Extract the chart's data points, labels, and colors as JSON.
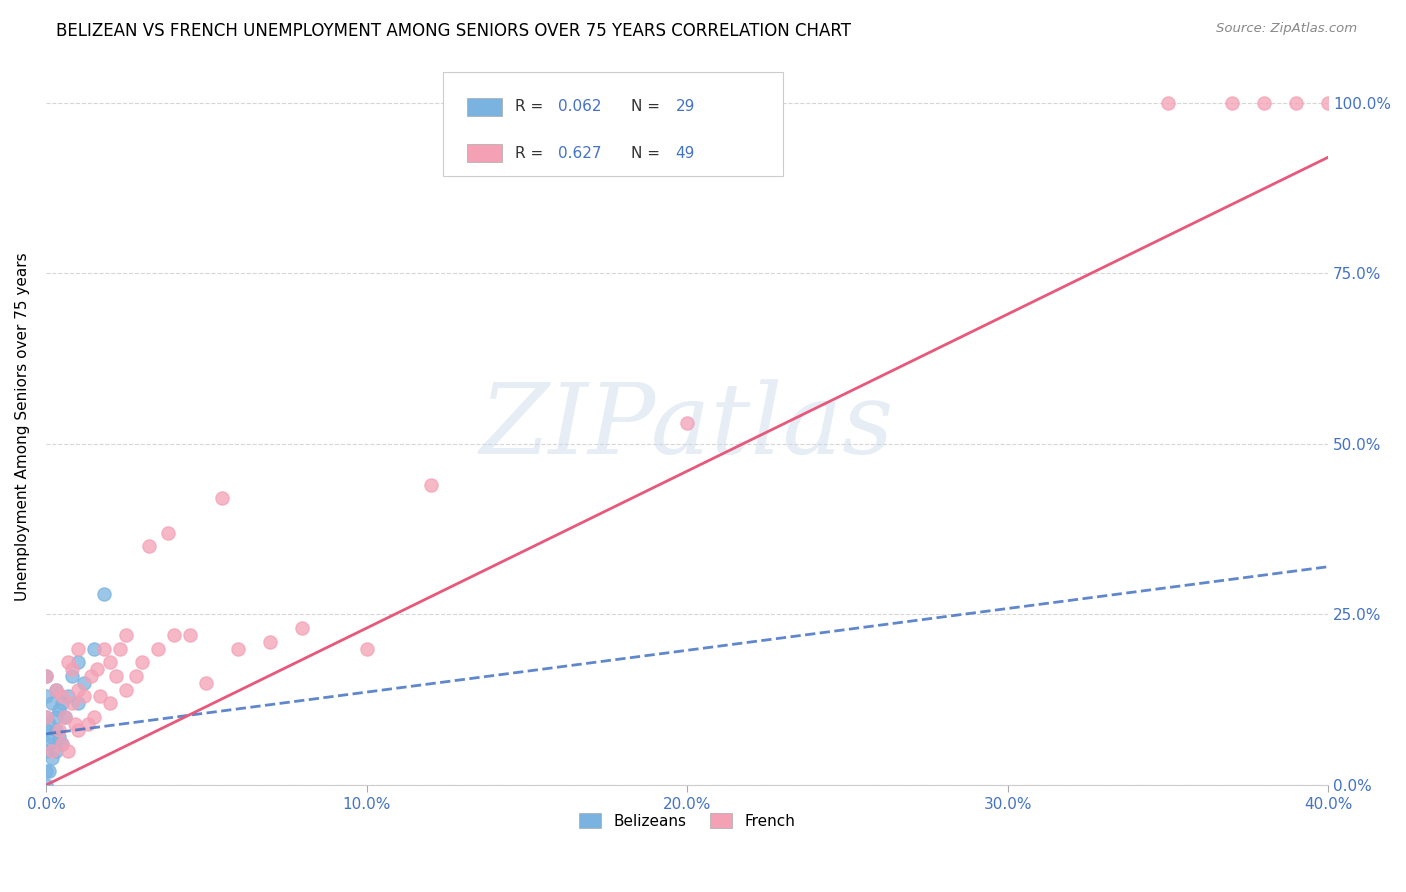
{
  "title": "BELIZEAN VS FRENCH UNEMPLOYMENT AMONG SENIORS OVER 75 YEARS CORRELATION CHART",
  "source": "Source: ZipAtlas.com",
  "ylabel": "Unemployment Among Seniors over 75 years",
  "xlim": [
    0.0,
    0.4
  ],
  "ylim": [
    0.0,
    1.05
  ],
  "x_tick_vals": [
    0.0,
    0.1,
    0.2,
    0.3,
    0.4
  ],
  "x_tick_labels": [
    "0.0%",
    "10.0%",
    "20.0%",
    "30.0%",
    "40.0%"
  ],
  "y_tick_vals": [
    0.0,
    0.25,
    0.5,
    0.75,
    1.0
  ],
  "y_tick_labels": [
    "0.0%",
    "25.0%",
    "50.0%",
    "75.0%",
    "100.0%"
  ],
  "belizean_color": "#7ab3e0",
  "french_color": "#f4a0b5",
  "belizean_line_color": "#4472C4",
  "french_line_color": "#e8587a",
  "belizean_R": 0.062,
  "belizean_N": 29,
  "french_R": 0.627,
  "french_N": 49,
  "bel_x": [
    0.0,
    0.0,
    0.0,
    0.0,
    0.0,
    0.0,
    0.0,
    0.001,
    0.001,
    0.001,
    0.002,
    0.002,
    0.002,
    0.003,
    0.003,
    0.003,
    0.003,
    0.004,
    0.004,
    0.005,
    0.005,
    0.006,
    0.007,
    0.008,
    0.01,
    0.01,
    0.012,
    0.015,
    0.018
  ],
  "bel_y": [
    0.0,
    0.02,
    0.05,
    0.08,
    0.1,
    0.13,
    0.16,
    0.02,
    0.06,
    0.09,
    0.04,
    0.07,
    0.12,
    0.05,
    0.08,
    0.1,
    0.14,
    0.07,
    0.11,
    0.06,
    0.12,
    0.1,
    0.13,
    0.16,
    0.12,
    0.18,
    0.15,
    0.2,
    0.28
  ],
  "fre_x": [
    0.0,
    0.0,
    0.002,
    0.003,
    0.004,
    0.005,
    0.005,
    0.006,
    0.007,
    0.007,
    0.008,
    0.008,
    0.009,
    0.01,
    0.01,
    0.01,
    0.012,
    0.013,
    0.014,
    0.015,
    0.016,
    0.017,
    0.018,
    0.02,
    0.02,
    0.022,
    0.023,
    0.025,
    0.025,
    0.028,
    0.03,
    0.032,
    0.035,
    0.038,
    0.04,
    0.045,
    0.05,
    0.055,
    0.06,
    0.07,
    0.08,
    0.1,
    0.12,
    0.2,
    0.35,
    0.37,
    0.38,
    0.39,
    0.4
  ],
  "fre_y": [
    0.1,
    0.16,
    0.05,
    0.14,
    0.08,
    0.06,
    0.13,
    0.1,
    0.05,
    0.18,
    0.12,
    0.17,
    0.09,
    0.08,
    0.14,
    0.2,
    0.13,
    0.09,
    0.16,
    0.1,
    0.17,
    0.13,
    0.2,
    0.12,
    0.18,
    0.16,
    0.2,
    0.14,
    0.22,
    0.16,
    0.18,
    0.35,
    0.2,
    0.37,
    0.22,
    0.22,
    0.15,
    0.42,
    0.2,
    0.21,
    0.23,
    0.2,
    0.44,
    0.53,
    1.0,
    1.0,
    1.0,
    1.0,
    1.0
  ],
  "bel_trend_x": [
    0.0,
    0.4
  ],
  "bel_trend_y": [
    0.075,
    0.32
  ],
  "fre_trend_x": [
    0.0,
    0.4
  ],
  "fre_trend_y": [
    0.0,
    0.92
  ],
  "watermark_text": "ZIPatlas",
  "watermark_color": "#c8d8ea",
  "legend_label_bel": "R = 0.062   N = 29",
  "legend_label_fre": "R = 0.627   N = 49",
  "bottom_legend_bel": "Belizeans",
  "bottom_legend_fre": "French"
}
